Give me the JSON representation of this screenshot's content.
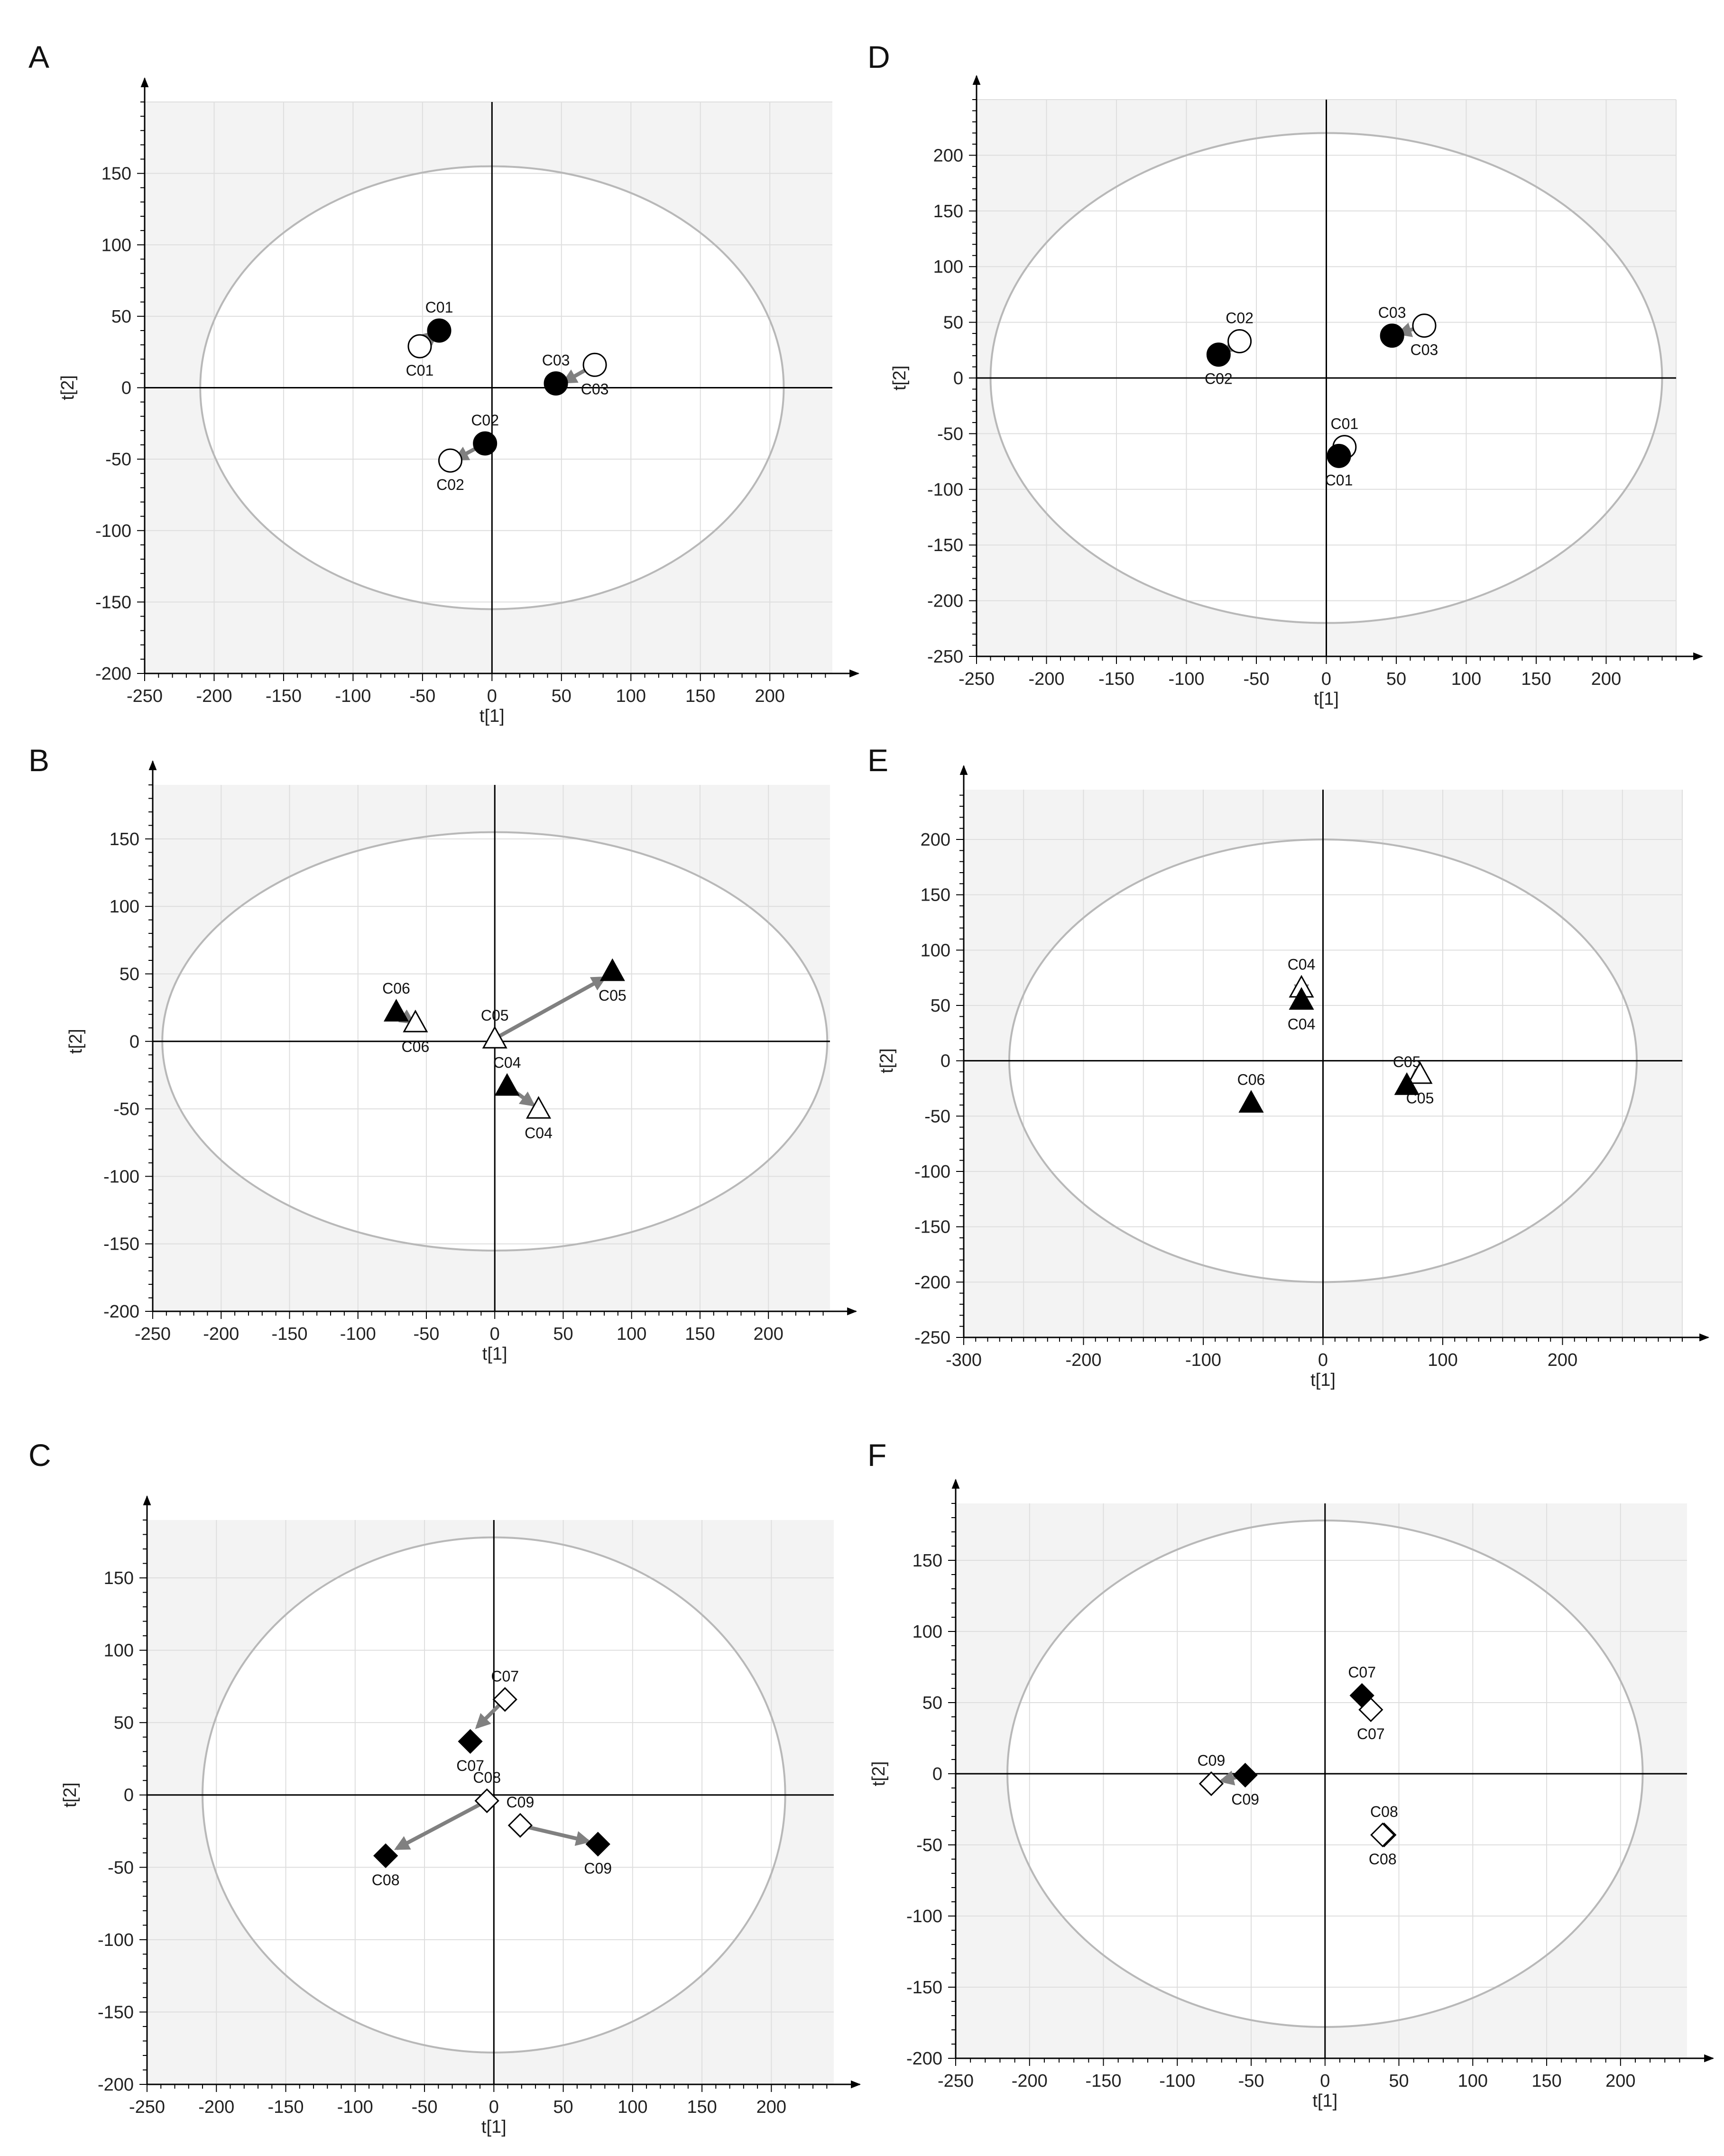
{
  "colors": {
    "plot_background": "#f3f3f3",
    "ellipse_fill": "#ffffff",
    "ellipse_stroke": "#b8b8b8",
    "grid": "#dedede",
    "axis": "#000000",
    "arrow": "#808080",
    "filled_marker": "#000000",
    "open_marker": "#ffffff"
  },
  "chart_data": [
    {
      "panel": "A",
      "type": "scatter",
      "xlabel": "t[1]",
      "ylabel": "t[2]",
      "xlim": [
        -250,
        245
      ],
      "ylim": [
        -200,
        200
      ],
      "xticks": [
        -250,
        -200,
        -150,
        -100,
        -50,
        0,
        50,
        100,
        150,
        200
      ],
      "yticks": [
        -200,
        -150,
        -100,
        -50,
        0,
        50,
        100,
        150
      ],
      "ellipse": {
        "rx": 210,
        "ry": 155
      },
      "grid": true,
      "marker": "circle",
      "points": [
        {
          "label": "C01",
          "x": -38,
          "y": 40,
          "filled": true
        },
        {
          "label": "C01",
          "x": -52,
          "y": 29,
          "filled": false
        },
        {
          "label": "C02",
          "x": -5,
          "y": -39,
          "filled": true
        },
        {
          "label": "C02",
          "x": -30,
          "y": -51,
          "filled": false
        },
        {
          "label": "C03",
          "x": 46,
          "y": 3,
          "filled": true
        },
        {
          "label": "C03",
          "x": 74,
          "y": 16,
          "filled": false
        }
      ],
      "arrows": [
        {
          "from": [
            -52,
            29
          ],
          "to": [
            -40,
            39
          ]
        },
        {
          "from": [
            -5,
            -39
          ],
          "to": [
            -26,
            -50
          ]
        },
        {
          "from": [
            74,
            16
          ],
          "to": [
            52,
            4
          ]
        }
      ]
    },
    {
      "panel": "B",
      "type": "scatter",
      "xlabel": "t[1]",
      "ylabel": "t[2]",
      "xlim": [
        -250,
        245
      ],
      "ylim": [
        -200,
        190
      ],
      "xticks": [
        -250,
        -200,
        -150,
        -100,
        -50,
        0,
        50,
        100,
        150,
        200
      ],
      "yticks": [
        -200,
        -150,
        -100,
        -50,
        0,
        50,
        100,
        150
      ],
      "ellipse": {
        "rx": 243,
        "ry": 155
      },
      "grid": true,
      "marker": "triangle",
      "points": [
        {
          "label": "C06",
          "x": -72,
          "y": 22,
          "filled": true
        },
        {
          "label": "C06",
          "x": -58,
          "y": 14,
          "filled": false
        },
        {
          "label": "C05",
          "x": 0,
          "y": 2,
          "filled": false
        },
        {
          "label": "C05",
          "x": 86,
          "y": 52,
          "filled": true
        },
        {
          "label": "C04",
          "x": 9,
          "y": -33,
          "filled": true
        },
        {
          "label": "C04",
          "x": 32,
          "y": -50,
          "filled": false
        }
      ],
      "arrows": [
        {
          "from": [
            -72,
            22
          ],
          "to": [
            -60,
            14
          ]
        },
        {
          "from": [
            0,
            2
          ],
          "to": [
            80,
            47
          ]
        },
        {
          "from": [
            9,
            -33
          ],
          "to": [
            28,
            -47
          ]
        }
      ]
    },
    {
      "panel": "C",
      "type": "scatter",
      "xlabel": "t[1]",
      "ylabel": "t[2]",
      "xlim": [
        -250,
        245
      ],
      "ylim": [
        -200,
        190
      ],
      "xticks": [
        -250,
        -200,
        -150,
        -100,
        -50,
        0,
        50,
        100,
        150,
        200
      ],
      "yticks": [
        -200,
        -150,
        -100,
        -50,
        0,
        50,
        100,
        150
      ],
      "ellipse": {
        "rx": 210,
        "ry": 178
      },
      "grid": true,
      "marker": "diamond",
      "points": [
        {
          "label": "C07",
          "x": 8,
          "y": 66,
          "filled": false
        },
        {
          "label": "C07",
          "x": -17,
          "y": 37,
          "filled": true
        },
        {
          "label": "C08",
          "x": -5,
          "y": -4,
          "filled": false
        },
        {
          "label": "C08",
          "x": -78,
          "y": -42,
          "filled": true
        },
        {
          "label": "C09",
          "x": 19,
          "y": -21,
          "filled": false
        },
        {
          "label": "C09",
          "x": 75,
          "y": -34,
          "filled": true
        }
      ],
      "arrows": [
        {
          "from": [
            8,
            66
          ],
          "to": [
            -12,
            47
          ]
        },
        {
          "from": [
            -5,
            -4
          ],
          "to": [
            -70,
            -37
          ]
        },
        {
          "from": [
            19,
            -21
          ],
          "to": [
            68,
            -32
          ]
        }
      ]
    },
    {
      "panel": "D",
      "type": "scatter",
      "xlabel": "t[1]",
      "ylabel": "t[2]",
      "xlim": [
        -250,
        250
      ],
      "ylim": [
        -250,
        250
      ],
      "xticks": [
        -250,
        -200,
        -150,
        -100,
        -50,
        0,
        50,
        100,
        150,
        200
      ],
      "yticks": [
        -250,
        -200,
        -150,
        -100,
        -50,
        0,
        50,
        100,
        150,
        200
      ],
      "ellipse": {
        "rx": 240,
        "ry": 220
      },
      "grid": true,
      "marker": "circle",
      "points": [
        {
          "label": "C02",
          "x": -62,
          "y": 33,
          "filled": false
        },
        {
          "label": "C02",
          "x": -77,
          "y": 21,
          "filled": true
        },
        {
          "label": "C03",
          "x": 47,
          "y": 38,
          "filled": true
        },
        {
          "label": "C03",
          "x": 70,
          "y": 47,
          "filled": false
        },
        {
          "label": "C01",
          "x": 13,
          "y": -62,
          "filled": false
        },
        {
          "label": "C01",
          "x": 9,
          "y": -70,
          "filled": true
        }
      ],
      "arrows": [
        {
          "from": [
            -62,
            33
          ],
          "to": [
            -72,
            24
          ]
        },
        {
          "from": [
            70,
            47
          ],
          "to": [
            52,
            40
          ]
        },
        {
          "from": [
            13,
            -62
          ],
          "to": [
            10,
            -68
          ]
        }
      ]
    },
    {
      "panel": "E",
      "type": "scatter",
      "xlabel": "t[1]",
      "ylabel": "t[2]",
      "xlim": [
        -300,
        300
      ],
      "ylim": [
        -250,
        245
      ],
      "xticks": [
        -300,
        -200,
        -100,
        0,
        100,
        200
      ],
      "yticks": [
        -250,
        -200,
        -150,
        -100,
        -50,
        0,
        50,
        100,
        150,
        200
      ],
      "ellipse": {
        "rx": 262,
        "ry": 200
      },
      "grid": true,
      "marker": "triangle",
      "points": [
        {
          "label": "C04",
          "x": -18,
          "y": 66,
          "filled": false
        },
        {
          "label": "C04",
          "x": -18,
          "y": 55,
          "filled": true
        },
        {
          "label": "C06",
          "x": -60,
          "y": -38,
          "filled": true
        },
        {
          "label": "C05",
          "x": 81,
          "y": -12,
          "filled": false
        },
        {
          "label": "C05",
          "x": 70,
          "y": -22,
          "filled": true
        }
      ],
      "arrows": [
        {
          "from": [
            -18,
            66
          ],
          "to": [
            -18,
            58
          ]
        },
        {
          "from": [
            81,
            -12
          ],
          "to": [
            73,
            -19
          ]
        }
      ]
    },
    {
      "panel": "F",
      "type": "scatter",
      "xlabel": "t[1]",
      "ylabel": "t[2]",
      "xlim": [
        -250,
        245
      ],
      "ylim": [
        -200,
        190
      ],
      "xticks": [
        -250,
        -200,
        -150,
        -100,
        -50,
        0,
        50,
        100,
        150,
        200
      ],
      "yticks": [
        -200,
        -150,
        -100,
        -50,
        0,
        50,
        100,
        150
      ],
      "ellipse": {
        "rx": 215,
        "ry": 178
      },
      "grid": true,
      "marker": "diamond",
      "points": [
        {
          "label": "C07",
          "x": 25,
          "y": 55,
          "filled": true
        },
        {
          "label": "C07",
          "x": 31,
          "y": 45,
          "filled": false
        },
        {
          "label": "C09",
          "x": -77,
          "y": -7,
          "filled": false
        },
        {
          "label": "C09",
          "x": -54,
          "y": -1,
          "filled": true
        },
        {
          "label": "C08",
          "x": 40,
          "y": -43,
          "filled": true
        },
        {
          "label": "C08",
          "x": 39,
          "y": -43,
          "filled": false
        }
      ],
      "arrows": [
        {
          "from": [
            25,
            55
          ],
          "to": [
            29,
            48
          ]
        },
        {
          "from": [
            -54,
            -1
          ],
          "to": [
            -70,
            -5
          ]
        }
      ]
    }
  ]
}
